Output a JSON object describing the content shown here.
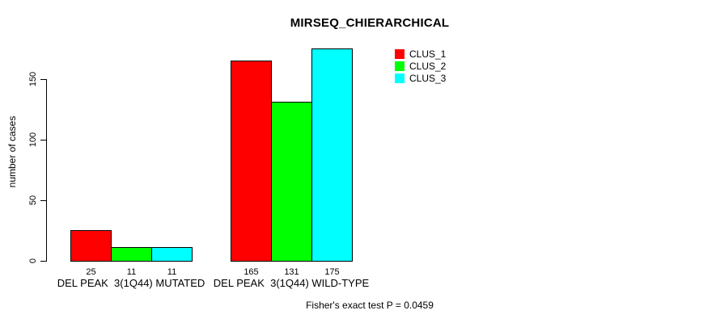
{
  "footnote": "Fisher's exact test P = 0.0459",
  "chart_data": {
    "type": "bar",
    "title": "MIRSEQ_CHIERARCHICAL",
    "xlabel": "",
    "ylabel": "number of cases",
    "categories": [
      "DEL PEAK  3(1Q44) MUTATED",
      "DEL PEAK  3(1Q44) WILD-TYPE"
    ],
    "series": [
      {
        "name": "CLUS_1",
        "color": "#FF0000",
        "values": [
          25,
          165
        ]
      },
      {
        "name": "CLUS_2",
        "color": "#00FF00",
        "values": [
          11,
          131
        ]
      },
      {
        "name": "CLUS_3",
        "color": "#00FFFF",
        "values": [
          11,
          175
        ]
      }
    ],
    "bar_value_labels": [
      [
        25,
        165
      ],
      [
        11,
        131
      ],
      [
        11,
        175
      ]
    ],
    "y_ticks": [
      0,
      50,
      100,
      150
    ],
    "ylim": [
      0,
      175
    ],
    "grid": false,
    "legend_position": "top-right"
  }
}
